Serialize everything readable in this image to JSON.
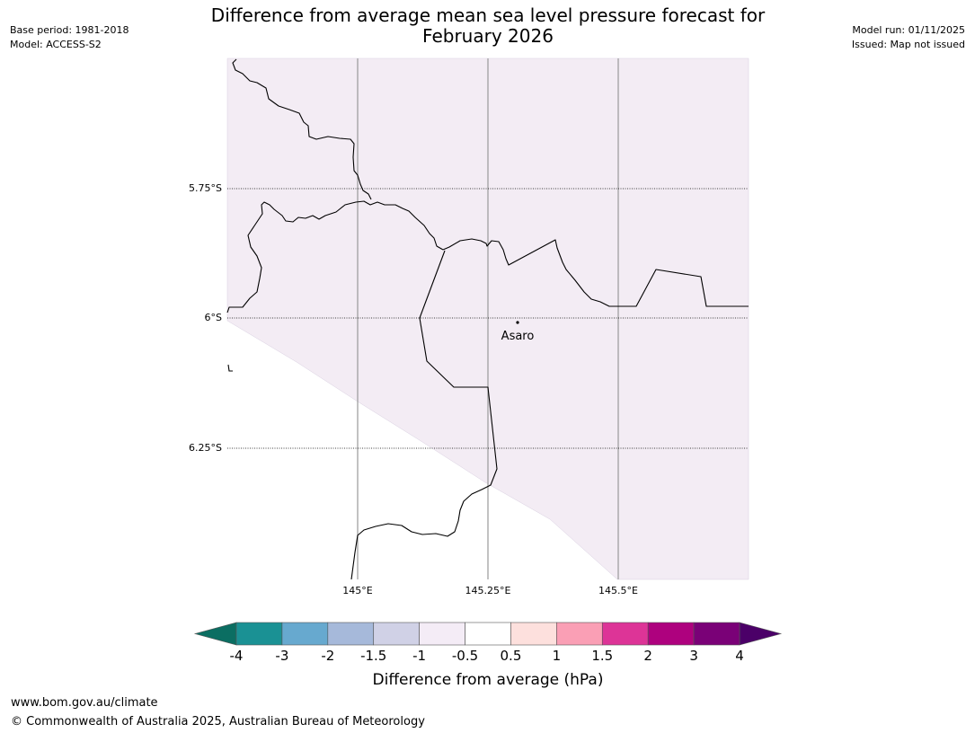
{
  "header": {
    "title_line1": "Difference from average mean sea level pressure forecast for",
    "title_line2": "February 2026",
    "base_period": "Base period: 1981-2018",
    "model": "Model: ACCESS-S2",
    "model_run": "Model run: 01/11/2025",
    "issued": "Issued: Map not issued"
  },
  "map": {
    "latitude_labels": [
      "5.75°S",
      "6°S",
      "6.25°S"
    ],
    "longitude_labels": [
      "145°E",
      "145.25°E",
      "145.5°E"
    ],
    "place_label": "Asaro",
    "fill_color": "#f3ecf4",
    "coast_color": "#000000",
    "grid_color": "#999999"
  },
  "legend": {
    "label": "Difference from average (hPa)",
    "ticks": [
      "-4",
      "-3",
      "-2",
      "-1.5",
      "-1",
      "-0.5",
      "0.5",
      "1",
      "1.5",
      "2",
      "3",
      "4"
    ],
    "under_color": "#0b6e62",
    "over_color": "#4b0068",
    "colors": [
      "#1a9194",
      "#67a9cf",
      "#a6b9da",
      "#d0d1e6",
      "#f4ecf6",
      "#ffffff",
      "#fde0dd",
      "#fa9fb5",
      "#dd3497",
      "#ae017e",
      "#7a0177"
    ]
  },
  "footer": {
    "url": "www.bom.gov.au/climate",
    "copyright": "© Commonwealth of Australia 2025, Australian Bureau of Meteorology"
  }
}
